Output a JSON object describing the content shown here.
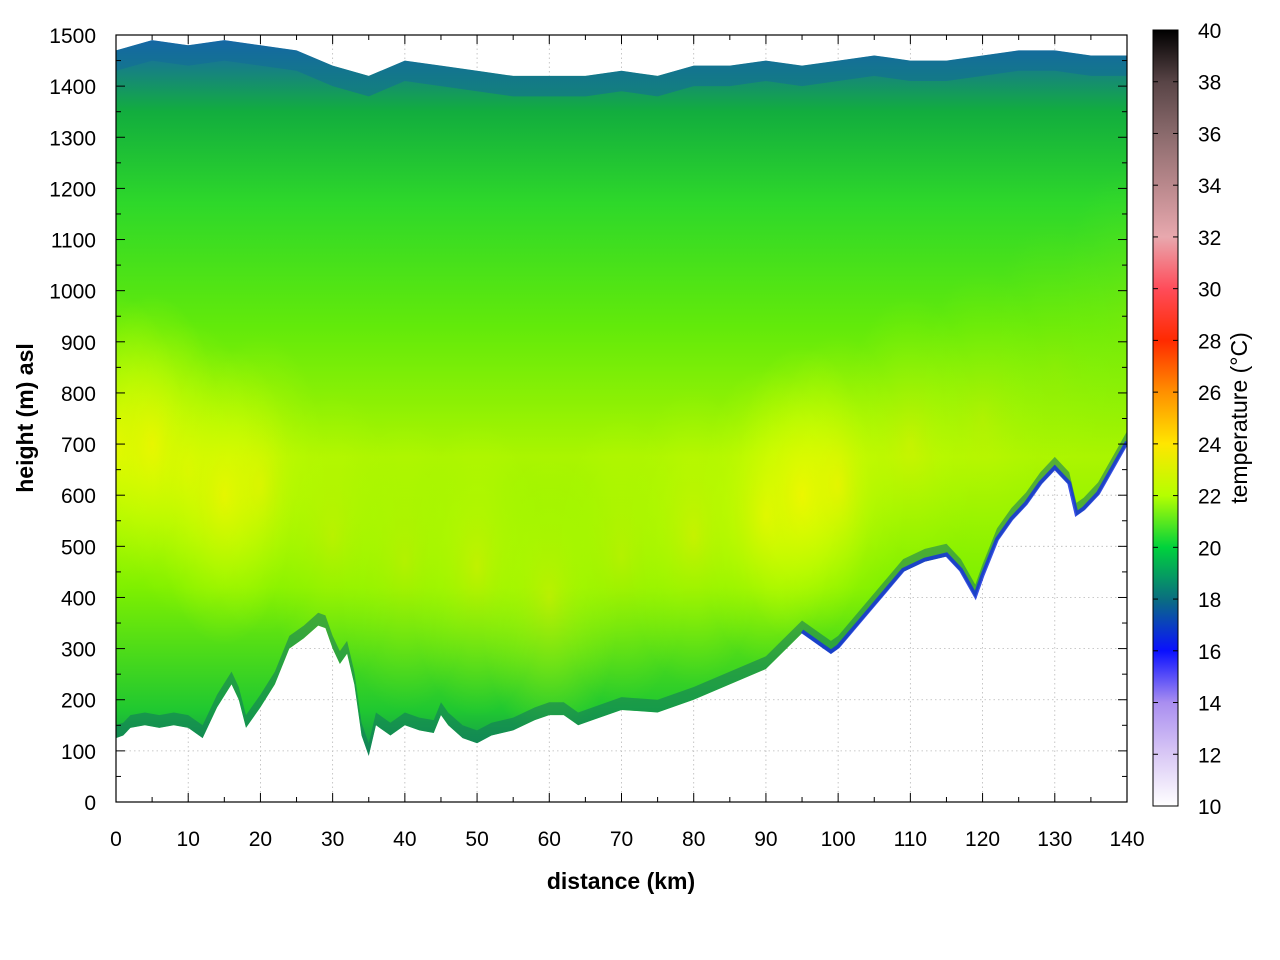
{
  "chart_data": {
    "type": "heatmap",
    "xlabel": "distance (km)",
    "ylabel": "height (m) asl",
    "colorbar_label": "temperature (°C)",
    "xlim": [
      0,
      140
    ],
    "ylim": [
      0,
      1500
    ],
    "clim": [
      10,
      40
    ],
    "x_ticks": [
      "0",
      "10",
      "20",
      "30",
      "40",
      "50",
      "60",
      "70",
      "80",
      "90",
      "100",
      "110",
      "120",
      "130",
      "140"
    ],
    "y_ticks": [
      "0",
      "100",
      "200",
      "300",
      "400",
      "500",
      "600",
      "700",
      "800",
      "900",
      "1000",
      "1100",
      "1200",
      "1300",
      "1400",
      "1500"
    ],
    "colorbar_ticks": [
      "10",
      "12",
      "14",
      "16",
      "18",
      "20",
      "22",
      "24",
      "26",
      "28",
      "30",
      "32",
      "34",
      "36",
      "38",
      "40"
    ],
    "grid": true,
    "ground_profile": {
      "distance_km": [
        0,
        1,
        2,
        4,
        6,
        8,
        10,
        12,
        14,
        16,
        17,
        18,
        20,
        22,
        24,
        26,
        28,
        29,
        30,
        31,
        32,
        33,
        34,
        35,
        36,
        38,
        40,
        42,
        44,
        45,
        46,
        48,
        50,
        52,
        55,
        58,
        60,
        62,
        64,
        66,
        70,
        75,
        80,
        85,
        90,
        95,
        99,
        100,
        103,
        106,
        109,
        112,
        115,
        117,
        119,
        120,
        122,
        124,
        126,
        128,
        130,
        132,
        133,
        134,
        136,
        138,
        140
      ],
      "height_m": [
        125,
        130,
        145,
        150,
        145,
        150,
        145,
        125,
        185,
        230,
        200,
        145,
        185,
        230,
        300,
        320,
        345,
        340,
        300,
        270,
        290,
        230,
        130,
        90,
        150,
        130,
        150,
        140,
        135,
        170,
        150,
        125,
        115,
        130,
        140,
        160,
        170,
        170,
        150,
        160,
        180,
        175,
        200,
        230,
        260,
        330,
        290,
        300,
        350,
        400,
        450,
        470,
        480,
        450,
        400,
        440,
        510,
        550,
        580,
        620,
        650,
        620,
        560,
        570,
        600,
        650,
        700
      ]
    },
    "top_profile": {
      "distance_km": [
        0,
        5,
        10,
        15,
        20,
        25,
        30,
        35,
        40,
        45,
        50,
        55,
        60,
        65,
        70,
        75,
        80,
        85,
        90,
        95,
        100,
        105,
        110,
        115,
        120,
        125,
        130,
        135,
        140
      ],
      "height_m": [
        1470,
        1490,
        1480,
        1490,
        1480,
        1470,
        1440,
        1420,
        1450,
        1440,
        1430,
        1420,
        1420,
        1420,
        1430,
        1420,
        1440,
        1440,
        1450,
        1440,
        1450,
        1460,
        1450,
        1450,
        1460,
        1470,
        1470,
        1460,
        1460
      ]
    },
    "warm_core": {
      "distance_km": [
        0,
        5,
        10,
        15,
        20,
        30,
        40,
        50,
        60,
        70,
        80,
        90,
        95,
        100,
        110,
        120,
        130,
        140
      ],
      "height_m": [
        700,
        700,
        650,
        600,
        620,
        520,
        470,
        460,
        400,
        480,
        520,
        560,
        600,
        620,
        700,
        750,
        850,
        950
      ],
      "temperature_c": [
        23,
        23,
        22,
        23,
        22,
        21.5,
        21.5,
        22,
        22,
        21.5,
        22,
        23,
        23.5,
        22.5,
        21.5,
        21,
        20.5,
        20.5
      ]
    }
  }
}
